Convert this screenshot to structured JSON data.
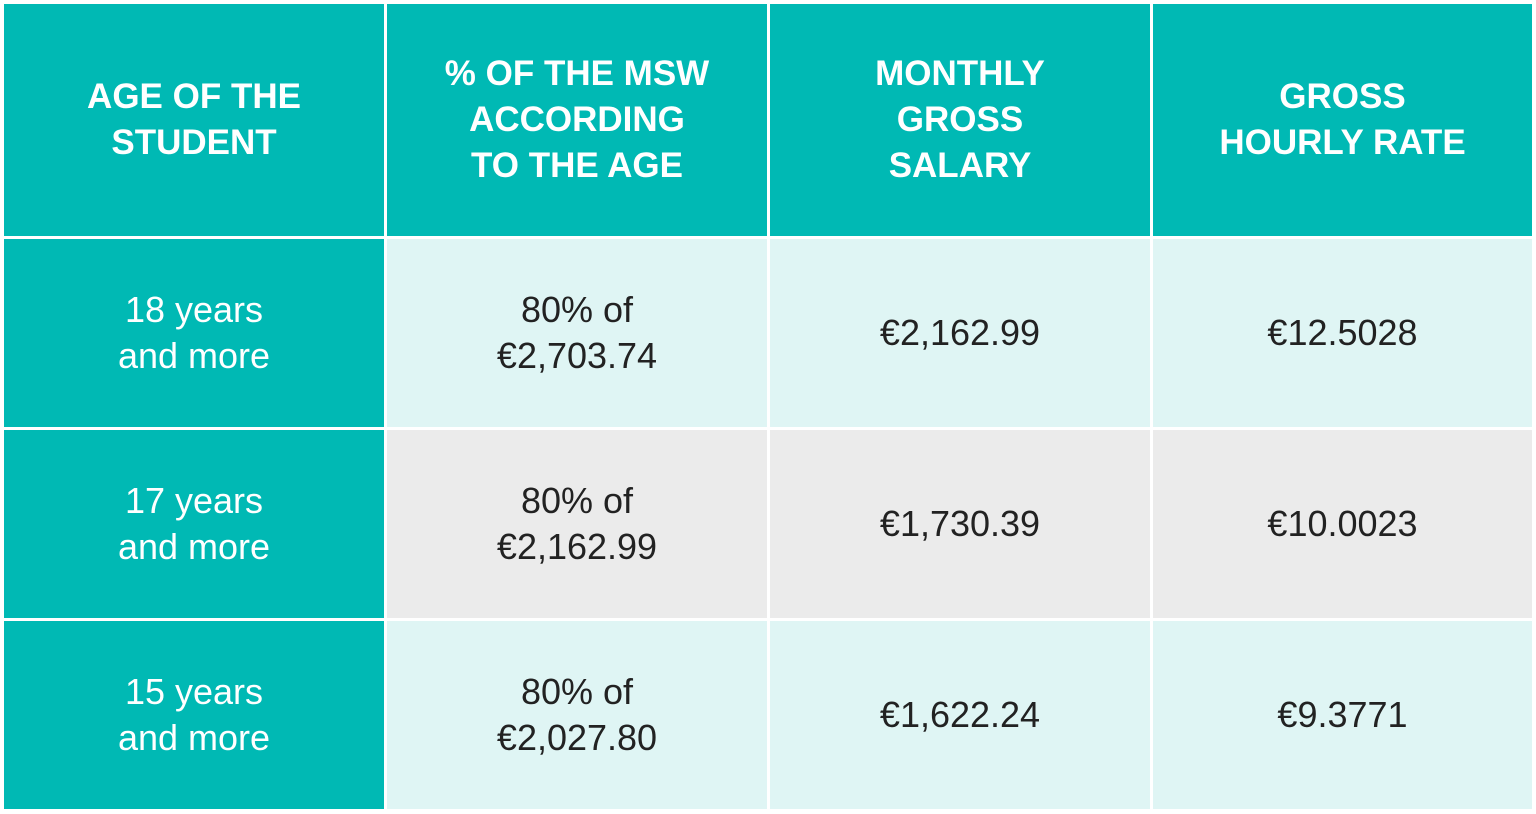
{
  "table": {
    "header": [
      [
        "AGE OF THE",
        "STUDENT"
      ],
      [
        "% OF THE MSW",
        "ACCORDING",
        "TO THE AGE"
      ],
      [
        "MONTHLY",
        "GROSS",
        "SALARY"
      ],
      [
        "GROSS",
        "HOURLY RATE"
      ]
    ],
    "rows": [
      [
        [
          "18 years",
          "and more"
        ],
        [
          "80% of",
          "€2,703.74"
        ],
        [
          "€2,162.99"
        ],
        [
          "€12.5028"
        ]
      ],
      [
        [
          "17 years",
          "and more"
        ],
        [
          "80% of",
          "€2,162.99"
        ],
        [
          "€1,730.39"
        ],
        [
          "€10.0023"
        ]
      ],
      [
        [
          "15 years",
          "and more"
        ],
        [
          "80% of",
          "€2,027.80"
        ],
        [
          "€1,622.24"
        ],
        [
          "€9.3771"
        ]
      ]
    ]
  }
}
